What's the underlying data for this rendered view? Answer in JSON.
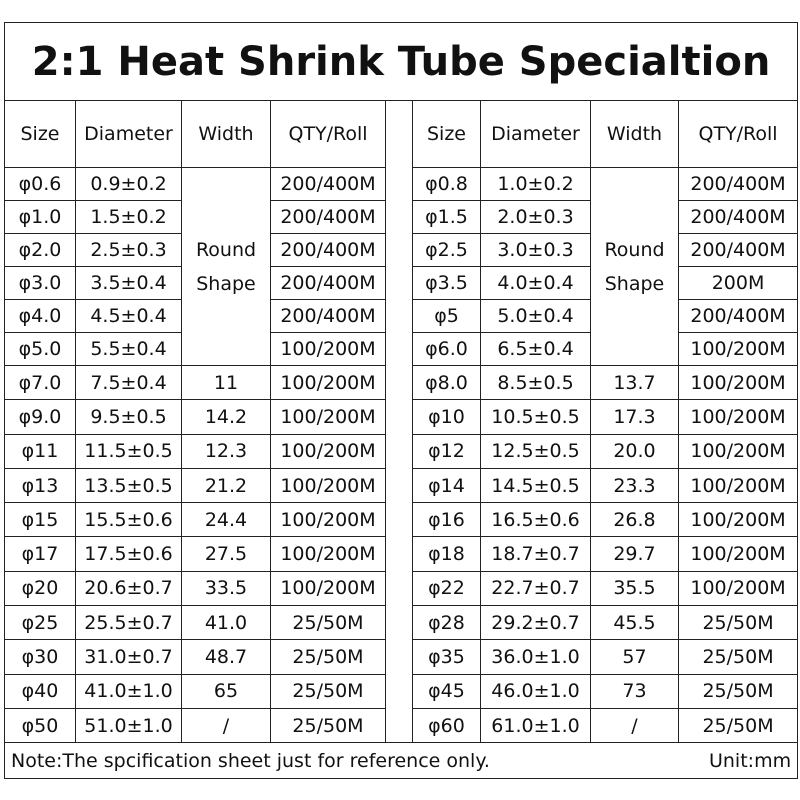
{
  "title": "2:1 Heat Shrink Tube Specialtion",
  "tables": [
    {
      "headers": [
        "Size",
        "Diameter",
        "Width",
        "QTY/Roll"
      ],
      "merged_width": "Round Shape",
      "top_rows": [
        [
          "φ0.6",
          "0.9±0.2",
          "200/400M"
        ],
        [
          "φ1.0",
          "1.5±0.2",
          "200/400M"
        ],
        [
          "φ2.0",
          "2.5±0.3",
          "200/400M"
        ],
        [
          "φ3.0",
          "3.5±0.4",
          "200/400M"
        ],
        [
          "φ4.0",
          "4.5±0.4",
          "200/400M"
        ],
        [
          "φ5.0",
          "5.5±0.4",
          "100/200M"
        ]
      ],
      "rows": [
        [
          "φ7.0",
          "7.5±0.4",
          "11",
          "100/200M"
        ],
        [
          "φ9.0",
          "9.5±0.5",
          "14.2",
          "100/200M"
        ],
        [
          "φ11",
          "11.5±0.5",
          "12.3",
          "100/200M"
        ],
        [
          "φ13",
          "13.5±0.5",
          "21.2",
          "100/200M"
        ],
        [
          "φ15",
          "15.5±0.6",
          "24.4",
          "100/200M"
        ],
        [
          "φ17",
          "17.5±0.6",
          "27.5",
          "100/200M"
        ],
        [
          "φ20",
          "20.6±0.7",
          "33.5",
          "100/200M"
        ],
        [
          "φ25",
          "25.5±0.7",
          "41.0",
          "25/50M"
        ],
        [
          "φ30",
          "31.0±0.7",
          "48.7",
          "25/50M"
        ],
        [
          "φ40",
          "41.0±1.0",
          "65",
          "25/50M"
        ],
        [
          "φ50",
          "51.0±1.0",
          "/",
          "25/50M"
        ]
      ]
    },
    {
      "headers": [
        "Size",
        "Diameter",
        "Width",
        "QTY/Roll"
      ],
      "merged_width": "Round Shape",
      "top_rows": [
        [
          "φ0.8",
          "1.0±0.2",
          "200/400M"
        ],
        [
          "φ1.5",
          "2.0±0.3",
          "200/400M"
        ],
        [
          "φ2.5",
          "3.0±0.3",
          "200/400M"
        ],
        [
          "φ3.5",
          "4.0±0.4",
          "200M"
        ],
        [
          "φ5",
          "5.0±0.4",
          "200/400M"
        ],
        [
          "φ6.0",
          "6.5±0.4",
          "100/200M"
        ]
      ],
      "rows": [
        [
          "φ8.0",
          "8.5±0.5",
          "13.7",
          "100/200M"
        ],
        [
          "φ10",
          "10.5±0.5",
          "17.3",
          "100/200M"
        ],
        [
          "φ12",
          "12.5±0.5",
          "20.0",
          "100/200M"
        ],
        [
          "φ14",
          "14.5±0.5",
          "23.3",
          "100/200M"
        ],
        [
          "φ16",
          "16.5±0.6",
          "26.8",
          "100/200M"
        ],
        [
          "φ18",
          "18.7±0.7",
          "29.7",
          "100/200M"
        ],
        [
          "φ22",
          "22.7±0.7",
          "35.5",
          "100/200M"
        ],
        [
          "φ28",
          "29.2±0.7",
          "45.5",
          "25/50M"
        ],
        [
          "φ35",
          "36.0±1.0",
          "57",
          "25/50M"
        ],
        [
          "φ45",
          "46.0±1.0",
          "73",
          "25/50M"
        ],
        [
          "φ60",
          "61.0±1.0",
          "/",
          "25/50M"
        ]
      ]
    }
  ],
  "note": "Note:The spcification sheet just for reference only.",
  "unit": "Unit:mm"
}
